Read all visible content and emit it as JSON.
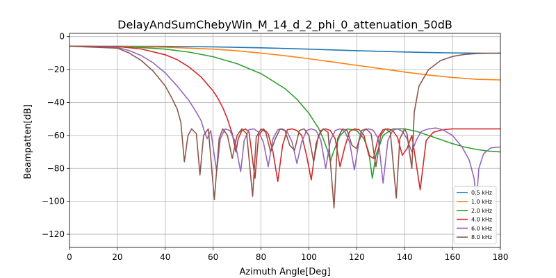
{
  "chart_data": {
    "type": "line",
    "title": "DelayAndSumChebyWin_M_14_d_2_phi_0_attenuation_50dB",
    "xlabel": "Azimuth Angle[Deg]",
    "ylabel": "Beampatten[dB]",
    "xlim": [
      0,
      180
    ],
    "ylim": [
      -128,
      2
    ],
    "xticks": [
      0,
      20,
      40,
      60,
      80,
      100,
      120,
      140,
      160,
      180
    ],
    "yticks": [
      0,
      -20,
      -40,
      -60,
      -80,
      -100,
      -120
    ],
    "xtick_labels": [
      "0",
      "20",
      "40",
      "60",
      "80",
      "100",
      "120",
      "140",
      "160",
      "180"
    ],
    "ytick_labels": [
      "0",
      "−20",
      "−40",
      "−60",
      "−80",
      "−100",
      "−120"
    ],
    "grid": true,
    "legend_position": "bottom-right",
    "series": [
      {
        "name": "0.5 kHz",
        "color": "#1f77b4",
        "x": [
          0,
          20,
          40,
          60,
          80,
          100,
          120,
          140,
          160,
          180
        ],
        "y": [
          -5.8,
          -5.8,
          -5.9,
          -6.2,
          -6.8,
          -7.6,
          -8.5,
          -9.3,
          -9.9,
          -10.1
        ]
      },
      {
        "name": "1.0 kHz",
        "color": "#ff7f0e",
        "x": [
          0,
          20,
          40,
          60,
          70,
          80,
          90,
          100,
          110,
          120,
          130,
          140,
          150,
          160,
          170,
          180
        ],
        "y": [
          -5.8,
          -5.9,
          -6.4,
          -7.6,
          -8.6,
          -10.0,
          -11.6,
          -13.4,
          -15.4,
          -17.4,
          -19.4,
          -21.5,
          -23.3,
          -24.8,
          -25.9,
          -26.3
        ]
      },
      {
        "name": "2.0 kHz",
        "color": "#2ca02c",
        "x": [
          0,
          20,
          30,
          40,
          50,
          60,
          70,
          80,
          90,
          95,
          100,
          104,
          106,
          108,
          109,
          110,
          113,
          116,
          120,
          123,
          125,
          126.5,
          128,
          131,
          135,
          140,
          145,
          150,
          155,
          160,
          165,
          170,
          175,
          180
        ],
        "y": [
          -5.8,
          -6.0,
          -6.6,
          -7.6,
          -9.4,
          -12.2,
          -16.4,
          -22.5,
          -31.5,
          -38.0,
          -46.5,
          -55.5,
          -62.0,
          -70.0,
          -76.0,
          -71.0,
          -60.0,
          -56.0,
          -57.0,
          -62.0,
          -70.0,
          -86.0,
          -72.0,
          -60.0,
          -56.0,
          -56.0,
          -57.5,
          -60.0,
          -62.5,
          -65.0,
          -67.0,
          -68.5,
          -69.5,
          -70.0
        ]
      },
      {
        "name": "4.0 kHz",
        "color": "#d62728",
        "x": [
          0,
          20,
          30,
          40,
          45,
          50,
          55,
          60,
          62,
          64,
          66,
          68,
          69.5,
          70.5,
          72,
          73.5,
          75,
          77.5,
          79,
          81,
          83,
          85,
          87,
          89,
          91,
          93,
          95,
          97,
          99,
          101,
          103,
          105,
          107,
          109,
          111,
          113,
          115,
          117,
          119,
          121,
          123,
          125,
          127,
          129,
          131,
          133,
          135,
          137,
          139,
          141,
          143,
          146.5,
          149,
          152,
          156,
          160,
          165,
          170,
          175,
          180
        ],
        "y": [
          -5.8,
          -6.0,
          -7.5,
          -11.0,
          -14.0,
          -18.5,
          -24.5,
          -33.0,
          -37.5,
          -43.0,
          -50.0,
          -59.0,
          -70.0,
          -62.0,
          -57.0,
          -56.0,
          -58.0,
          -86.0,
          -60.0,
          -56.0,
          -59.0,
          -70.0,
          -88.0,
          -66.0,
          -56.5,
          -56.0,
          -57.0,
          -60.0,
          -72.0,
          -87.0,
          -65.0,
          -57.0,
          -56.0,
          -57.0,
          -62.0,
          -79.0,
          -67.0,
          -57.5,
          -56.0,
          -56.5,
          -60.0,
          -72.0,
          -74.0,
          -61.0,
          -56.5,
          -56.0,
          -57.0,
          -61.0,
          -72.0,
          -68.0,
          -60.0,
          -93.0,
          -63.0,
          -58.0,
          -56.5,
          -56.0,
          -56.0,
          -56.0,
          -56.0,
          -56.0
        ]
      },
      {
        "name": "6.0 kHz",
        "color": "#9467bd",
        "x": [
          0,
          20,
          25,
          30,
          35,
          40,
          45,
          50,
          53,
          55,
          56,
          57.5,
          59,
          61.5,
          63,
          65,
          67,
          69,
          71.5,
          73,
          75,
          77,
          79,
          81,
          83,
          85,
          87,
          89,
          91,
          93,
          95,
          97,
          99,
          101,
          103,
          105,
          107,
          109,
          111,
          113,
          115,
          117,
          119,
          121,
          123,
          125,
          127,
          129,
          131,
          133,
          135,
          137,
          139,
          141,
          143,
          145,
          147,
          150,
          153,
          156,
          160,
          164,
          167,
          169,
          170,
          171,
          173,
          176,
          180
        ],
        "y": [
          -5.8,
          -6.5,
          -8.5,
          -11.5,
          -16.0,
          -22.0,
          -30.0,
          -39.0,
          -46.0,
          -51.0,
          -56.0,
          -62.0,
          -57.0,
          -82.0,
          -62.0,
          -56.0,
          -57.0,
          -63.0,
          -82.0,
          -63.0,
          -56.5,
          -56.0,
          -58.0,
          -64.0,
          -79.0,
          -62.0,
          -56.5,
          -56.0,
          -58.0,
          -64.0,
          -77.0,
          -64.0,
          -57.0,
          -56.0,
          -57.0,
          -63.0,
          -80.0,
          -63.0,
          -57.0,
          -56.0,
          -57.5,
          -64.0,
          -81.0,
          -63.0,
          -57.0,
          -56.0,
          -57.0,
          -62.0,
          -89.0,
          -63.0,
          -57.0,
          -56.0,
          -57.5,
          -62.0,
          -70.0,
          -62.5,
          -57.5,
          -56.0,
          -55.5,
          -56.5,
          -60.0,
          -67.0,
          -75.0,
          -86.0,
          -100.0,
          -80.0,
          -71.0,
          -67.5,
          -67.0
        ]
      },
      {
        "name": "8.0 kHz",
        "color": "#8c564b",
        "x": [
          0,
          20,
          25,
          30,
          35,
          40,
          43,
          45,
          46.5,
          48,
          49.5,
          51,
          53,
          54.5,
          56,
          58,
          60.5,
          62.5,
          64,
          66,
          68,
          70,
          72,
          74,
          76.5,
          78,
          80,
          82,
          84,
          86,
          88,
          90,
          92,
          94,
          96,
          98,
          100,
          102,
          104,
          106,
          108,
          110.5,
          112,
          114,
          116,
          118,
          120,
          122,
          124,
          126,
          128,
          130,
          132,
          134,
          136.5,
          138,
          140,
          141,
          142,
          143,
          144,
          146,
          150,
          155,
          160,
          165,
          170,
          175,
          180
        ],
        "y": [
          -5.8,
          -7.0,
          -10.0,
          -14.5,
          -21.0,
          -30.0,
          -38.0,
          -44.0,
          -52.0,
          -76.0,
          -60.0,
          -56.0,
          -59.0,
          -84.0,
          -60.0,
          -56.0,
          -99.0,
          -62.0,
          -56.0,
          -60.0,
          -74.0,
          -60.0,
          -56.0,
          -59.0,
          -97.0,
          -61.0,
          -56.0,
          -58.0,
          -70.0,
          -62.0,
          -56.0,
          -57.0,
          -66.0,
          -69.0,
          -57.0,
          -56.0,
          -60.0,
          -76.0,
          -60.0,
          -56.0,
          -58.0,
          -104.0,
          -62.0,
          -56.0,
          -57.0,
          -66.0,
          -68.0,
          -57.0,
          -56.0,
          -59.0,
          -79.0,
          -60.0,
          -56.0,
          -58.0,
          -98.0,
          -62.0,
          -56.0,
          -59.0,
          -70.0,
          -80.0,
          -46.0,
          -30.0,
          -20.0,
          -14.5,
          -12.0,
          -10.8,
          -10.3,
          -10.1,
          -10.0
        ]
      }
    ]
  }
}
